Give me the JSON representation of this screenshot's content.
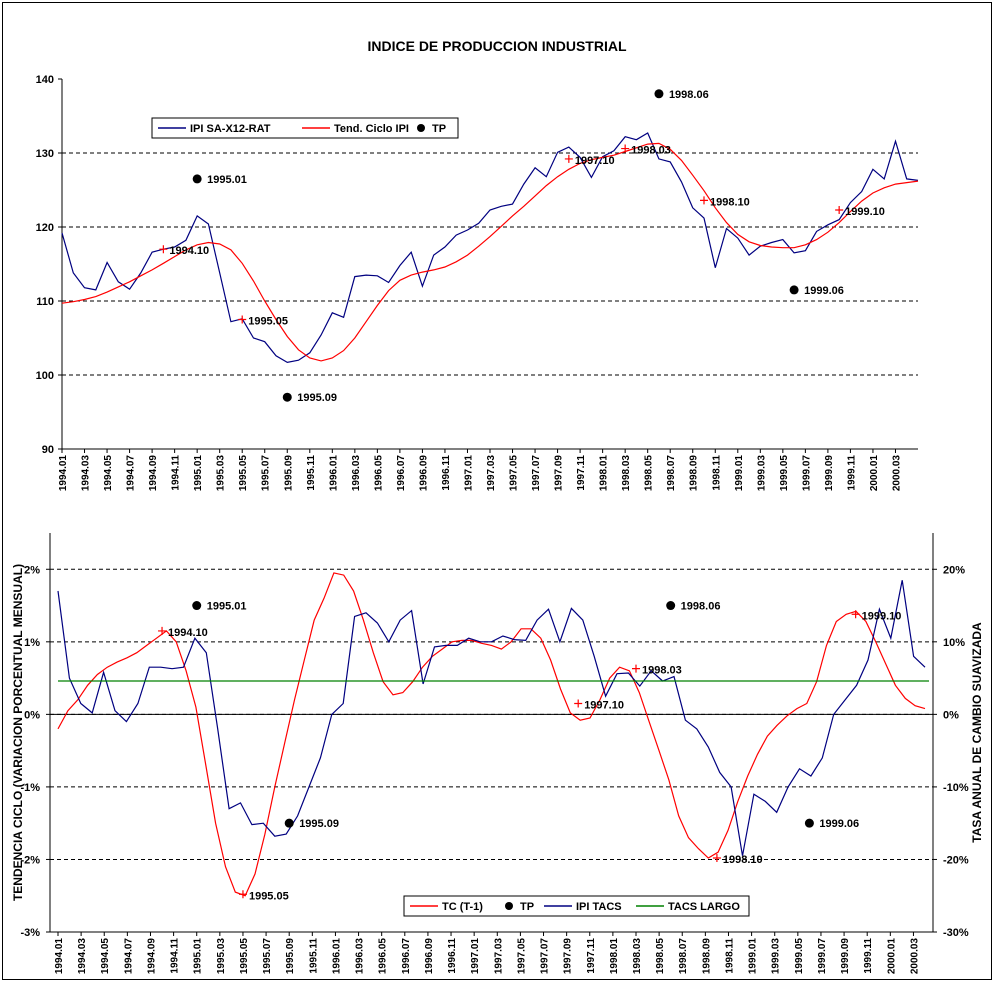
{
  "chart_data": [
    {
      "type": "line",
      "title": "INDICE DE PRODUCCION INDUSTRIAL",
      "ylim": [
        90,
        140
      ],
      "yticks": [
        "90",
        "100",
        "110",
        "120",
        "130",
        "140"
      ],
      "xtick_labels": [
        "1994.01",
        "1994.03",
        "1994.05",
        "1994.07",
        "1994.09",
        "1994.11",
        "1995.01",
        "1995.03",
        "1995.05",
        "1995.07",
        "1995.09",
        "1995.11",
        "1996.01",
        "1996.03",
        "1996.05",
        "1996.07",
        "1996.09",
        "1996.11",
        "1997.01",
        "1997.03",
        "1997.05",
        "1997.07",
        "1997.09",
        "1997.11",
        "1998.01",
        "1998.03",
        "1998.05",
        "1998.07",
        "1998.09",
        "1998.11",
        "1999.01",
        "1999.03",
        "1999.05",
        "1999.07",
        "1999.09",
        "1999.11",
        "2000.01",
        "2000.03"
      ],
      "legend": [
        "IPI SA-X12-RAT",
        "Tend. Ciclo IPI",
        "TP"
      ],
      "grid": "dashed horizontal",
      "series": [
        {
          "name": "IPI SA-X12-RAT",
          "color": "#000080",
          "values": [
            119.2,
            113.8,
            111.8,
            111.5,
            115.2,
            112.6,
            111.6,
            113.8,
            116.6,
            117.0,
            117.3,
            118.2,
            121.5,
            120.4,
            113.8,
            107.2,
            107.6,
            105.0,
            104.5,
            102.6,
            101.7,
            102.0,
            103.0,
            105.4,
            108.4,
            107.8,
            113.3,
            113.5,
            113.4,
            112.5,
            114.8,
            116.6,
            112.0,
            116.2,
            117.3,
            118.9,
            119.6,
            120.5,
            122.3,
            122.8,
            123.1,
            125.8,
            128.0,
            126.8,
            130.1,
            130.8,
            129.4,
            126.7,
            129.5,
            130.3,
            132.2,
            131.8,
            132.7,
            129.2,
            128.8,
            126.1,
            122.6,
            121.2,
            114.5,
            119.8,
            118.5,
            116.2,
            117.4,
            117.9,
            118.3,
            116.5,
            116.8,
            119.4,
            120.3,
            121.0,
            123.3,
            124.8,
            127.8,
            126.5,
            131.6,
            126.5,
            126.3
          ]
        },
        {
          "name": "Tend. Ciclo IPI",
          "color": "#ff0000",
          "values": [
            109.7,
            109.9,
            110.2,
            110.6,
            111.2,
            111.9,
            112.6,
            113.4,
            114.2,
            115.1,
            116.0,
            116.9,
            117.6,
            117.9,
            117.7,
            116.9,
            115.1,
            112.7,
            110.0,
            107.5,
            105.2,
            103.4,
            102.3,
            101.9,
            102.3,
            103.3,
            105.0,
            107.2,
            109.4,
            111.4,
            112.8,
            113.5,
            113.9,
            114.2,
            114.6,
            115.3,
            116.2,
            117.4,
            118.7,
            120.1,
            121.5,
            122.8,
            124.2,
            125.6,
            126.8,
            127.8,
            128.6,
            129.1,
            129.4,
            129.7,
            130.2,
            130.7,
            131.2,
            131.3,
            130.5,
            129.0,
            127.0,
            124.9,
            122.6,
            120.6,
            119.0,
            118.0,
            117.5,
            117.3,
            117.2,
            117.2,
            117.6,
            118.3,
            119.3,
            120.6,
            122.1,
            123.5,
            124.6,
            125.3,
            125.8,
            126.0,
            126.2
          ]
        },
        {
          "name": "TP",
          "color": "#000000",
          "points": [
            {
              "label": "1994.10",
              "x": "1994.10",
              "y": 117.0,
              "style": "cross"
            },
            {
              "label": "1995.01",
              "x": "1995.01",
              "y": 126.5,
              "style": "dot"
            },
            {
              "label": "1995.05",
              "x": "1995.05",
              "y": 107.5,
              "style": "cross"
            },
            {
              "label": "1995.09",
              "x": "1995.09",
              "y": 97.0,
              "style": "dot"
            },
            {
              "label": "1997.10",
              "x": "1997.10",
              "y": 129.2,
              "style": "cross"
            },
            {
              "label": "1998.03",
              "x": "1998.03",
              "y": 130.6,
              "style": "cross"
            },
            {
              "label": "1998.06",
              "x": "1998.06",
              "y": 138.0,
              "style": "dot"
            },
            {
              "label": "1998.10",
              "x": "1998.10",
              "y": 123.6,
              "style": "cross"
            },
            {
              "label": "1999.06",
              "x": "1999.06",
              "y": 111.5,
              "style": "dot"
            },
            {
              "label": "1999.10",
              "x": "1999.10",
              "y": 122.3,
              "style": "cross"
            }
          ]
        }
      ]
    },
    {
      "type": "line",
      "ylabel": "TENDENCIA CICLO (VARIACION PORCENTUAL MENSUAL)",
      "y2label": "TASA ANUAL DE CAMBIO SUAVIZADA",
      "ylim": [
        -3,
        2.5
      ],
      "y2lim": [
        -30,
        25
      ],
      "yticks": [
        "-3%",
        "-2%",
        "-1%",
        "0%",
        "1%",
        "2%"
      ],
      "y2ticks": [
        "-30%",
        "-20%",
        "-10%",
        "0%",
        "10%",
        "20%"
      ],
      "xtick_labels": [
        "1994.01",
        "1994.03",
        "1994.05",
        "1994.07",
        "1994.09",
        "1994.11",
        "1995.01",
        "1995.03",
        "1995.05",
        "1995.07",
        "1995.09",
        "1995.11",
        "1996.01",
        "1996.03",
        "1996.05",
        "1996.07",
        "1996.09",
        "1996.11",
        "1997.01",
        "1997.03",
        "1997.05",
        "1997.07",
        "1997.09",
        "1997.11",
        "1998.01",
        "1998.03",
        "1998.05",
        "1998.07",
        "1998.09",
        "1998.11",
        "1999.01",
        "1999.03",
        "1999.05",
        "1999.07",
        "1999.09",
        "1999.11",
        "2000.01",
        "2000.03"
      ],
      "legend": [
        "TC (T-1)",
        "TP",
        "IPI TACS",
        "TACS LARGO"
      ],
      "grid": "dashed horizontal",
      "series": [
        {
          "name": "TC (T-1)",
          "axis": "left",
          "color": "#ff0000",
          "values": [
            -0.2,
            0.05,
            0.2,
            0.4,
            0.55,
            0.65,
            0.72,
            0.78,
            0.85,
            0.95,
            1.05,
            1.15,
            1.0,
            0.6,
            0.1,
            -0.7,
            -1.5,
            -2.1,
            -2.45,
            -2.5,
            -2.2,
            -1.65,
            -1.0,
            -0.4,
            0.2,
            0.75,
            1.3,
            1.6,
            1.95,
            1.92,
            1.7,
            1.3,
            0.85,
            0.45,
            0.27,
            0.3,
            0.45,
            0.65,
            0.8,
            0.9,
            1.0,
            1.02,
            1.02,
            0.98,
            0.95,
            0.9,
            1.0,
            1.18,
            1.18,
            1.05,
            0.75,
            0.35,
            0.02,
            -0.08,
            -0.05,
            0.2,
            0.5,
            0.65,
            0.6,
            0.3,
            -0.1,
            -0.5,
            -0.9,
            -1.4,
            -1.7,
            -1.85,
            -1.98,
            -1.9,
            -1.6,
            -1.2,
            -0.85,
            -0.55,
            -0.3,
            -0.15,
            -0.02,
            0.08,
            0.15,
            0.45,
            0.95,
            1.28,
            1.38,
            1.42,
            1.28,
            1.0,
            0.7,
            0.4,
            0.22,
            0.12,
            0.08
          ]
        },
        {
          "name": "IPI TACS",
          "axis": "right",
          "color": "#000080",
          "values": [
            17.0,
            5.0,
            1.5,
            0.2,
            5.8,
            0.5,
            -1.0,
            1.5,
            6.5,
            6.5,
            6.3,
            6.5,
            10.5,
            8.5,
            -2.0,
            -13.0,
            -12.2,
            -15.2,
            -15.0,
            -16.8,
            -16.5,
            -14.0,
            -10.0,
            -6.0,
            0.0,
            1.5,
            13.5,
            14.0,
            12.6,
            10.0,
            13.0,
            14.3,
            4.2,
            9.3,
            9.5,
            9.5,
            10.5,
            10.0,
            10.0,
            10.8,
            10.3,
            10.2,
            13.0,
            14.5,
            10.0,
            14.6,
            13.0,
            8.0,
            2.5,
            5.6,
            5.7,
            3.9,
            6.0,
            4.6,
            5.2,
            -0.8,
            -2.0,
            -4.5,
            -8.0,
            -10.0,
            -19.5,
            -11.0,
            -12.0,
            -13.5,
            -10.0,
            -7.5,
            -8.5,
            -6.0,
            0.0,
            2.0,
            4.0,
            7.5,
            14.5,
            10.5,
            18.5,
            8.0,
            6.5
          ]
        },
        {
          "name": "TACS LARGO",
          "axis": "right",
          "color": "#008000",
          "values": [
            4.6,
            4.6
          ]
        },
        {
          "name": "TP",
          "color": "#000000",
          "points": [
            {
              "label": "1994.10",
              "x": "1994.10",
              "y": 1.15,
              "style": "cross"
            },
            {
              "label": "1995.01",
              "x": "1995.01",
              "y": 1.5,
              "style": "dot"
            },
            {
              "label": "1995.05",
              "x": "1995.05",
              "y": -2.48,
              "style": "cross"
            },
            {
              "label": "1995.09",
              "x": "1995.09",
              "y": -1.5,
              "style": "dot"
            },
            {
              "label": "1997.10",
              "x": "1997.10",
              "y": 0.15,
              "style": "cross"
            },
            {
              "label": "1998.03",
              "x": "1998.03",
              "y": 0.63,
              "style": "cross"
            },
            {
              "label": "1998.06",
              "x": "1998.06",
              "y": 1.5,
              "style": "dot"
            },
            {
              "label": "1998.10",
              "x": "1998.10",
              "y": -1.98,
              "style": "cross"
            },
            {
              "label": "1999.06",
              "x": "1999.06",
              "y": -1.5,
              "style": "dot"
            },
            {
              "label": "1999.10",
              "x": "1999.10",
              "y": 1.38,
              "style": "cross"
            }
          ]
        }
      ]
    }
  ]
}
